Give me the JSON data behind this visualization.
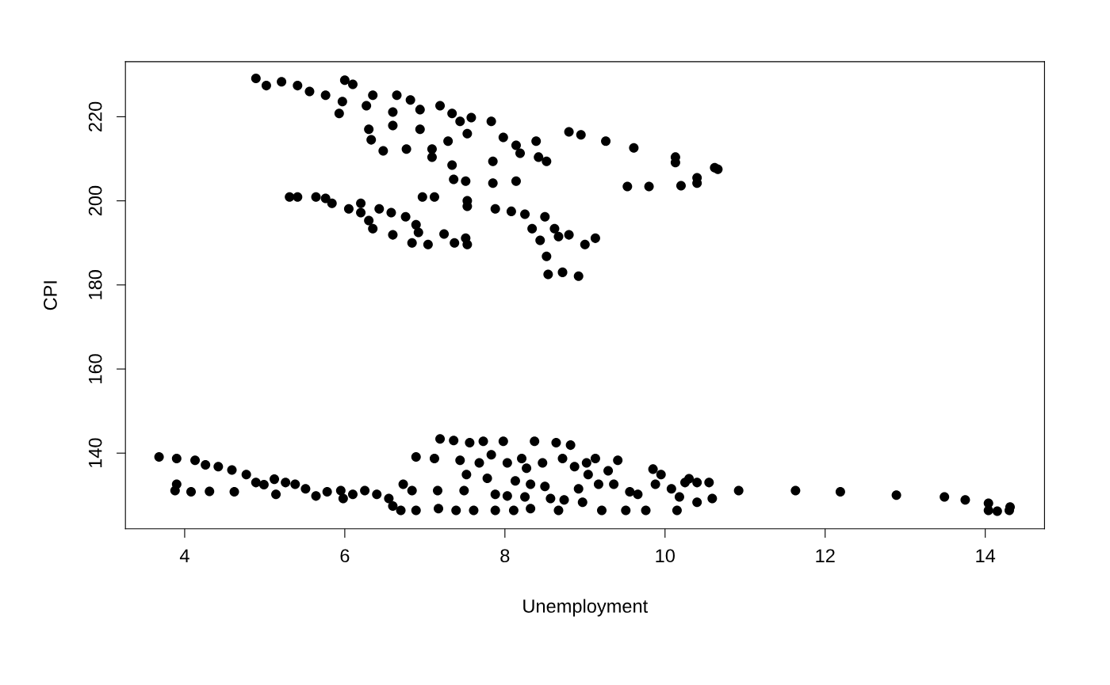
{
  "chart_data": {
    "type": "scatter",
    "xlabel": "Unemployment",
    "ylabel": "CPI",
    "xlim": [
      3.26,
      14.74
    ],
    "ylim": [
      122.0,
      233.1
    ],
    "xticks": [
      4,
      6,
      8,
      10,
      12,
      14
    ],
    "yticks": [
      140,
      160,
      180,
      200,
      220
    ],
    "grid": false,
    "marker": "circle",
    "series": [
      {
        "color": "#000000",
        "x": [
          4.89,
          5.02,
          5.21,
          5.41,
          5.56,
          5.76,
          5.97,
          6.0,
          6.1,
          6.35,
          6.65,
          6.27,
          5.93,
          6.3,
          6.33,
          6.6,
          6.6,
          6.82,
          6.94,
          6.94,
          6.48,
          6.77,
          7.09,
          7.09,
          7.19,
          7.34,
          7.44,
          7.58,
          7.29,
          7.53,
          7.34,
          7.36,
          7.51,
          7.85,
          7.85,
          7.83,
          7.98,
          8.14,
          8.19,
          8.42,
          8.52,
          8.14,
          8.39,
          8.8,
          8.95,
          9.26,
          9.61,
          9.53,
          9.8,
          10.13,
          10.13,
          10.2,
          10.4,
          10.4,
          10.62,
          10.66,
          5.31,
          5.41,
          5.64,
          5.76,
          5.84,
          6.05,
          6.2,
          6.2,
          6.3,
          6.35,
          6.43,
          6.58,
          6.6,
          6.76,
          6.89,
          6.92,
          6.84,
          7.04,
          6.97,
          7.12,
          7.24,
          7.37,
          7.51,
          7.53,
          7.53,
          7.53,
          7.88,
          8.08,
          8.25,
          8.34,
          8.44,
          8.5,
          8.52,
          8.54,
          8.62,
          8.67,
          8.72,
          8.8,
          8.92,
          9.0,
          9.13,
          3.68,
          3.9,
          3.9,
          3.88,
          4.08,
          4.13,
          4.26,
          4.31,
          4.42,
          4.59,
          4.62,
          4.77,
          4.89,
          4.99,
          5.12,
          5.14,
          5.26,
          5.38,
          5.51,
          5.64,
          5.78,
          5.95,
          5.98,
          6.1,
          6.25,
          6.4,
          6.55,
          6.6,
          6.7,
          6.73,
          6.84,
          6.89,
          6.89,
          7.12,
          7.16,
          7.17,
          7.19,
          7.36,
          7.39,
          7.44,
          7.49,
          7.52,
          7.56,
          7.61,
          7.68,
          7.73,
          7.78,
          7.83,
          7.88,
          7.88,
          7.98,
          8.03,
          8.03,
          8.11,
          8.13,
          8.21,
          8.25,
          8.27,
          8.32,
          8.32,
          8.37,
          8.47,
          8.5,
          8.57,
          8.64,
          8.67,
          8.72,
          8.74,
          8.82,
          8.87,
          8.92,
          8.97,
          9.02,
          9.04,
          9.13,
          9.17,
          9.21,
          9.29,
          9.36,
          9.41,
          9.51,
          9.56,
          9.66,
          9.76,
          9.85,
          9.88,
          9.95,
          10.08,
          10.15,
          10.18,
          10.25,
          10.3,
          10.4,
          10.4,
          10.55,
          10.59,
          10.92,
          11.63,
          12.19,
          12.89,
          13.49,
          13.75,
          14.04,
          14.04,
          14.15,
          14.3,
          14.31
        ],
        "values": [
          229.1,
          227.4,
          228.3,
          227.4,
          226.0,
          225.1,
          223.6,
          228.7,
          227.7,
          225.1,
          225.1,
          222.6,
          220.8,
          217.0,
          214.5,
          217.9,
          221.1,
          224.0,
          221.7,
          217.0,
          211.9,
          212.3,
          212.3,
          210.4,
          222.6,
          220.8,
          218.9,
          219.8,
          214.2,
          216.0,
          208.5,
          205.1,
          204.7,
          209.4,
          204.2,
          218.9,
          215.1,
          213.2,
          211.3,
          210.4,
          209.4,
          204.7,
          214.2,
          216.4,
          215.7,
          214.2,
          212.6,
          203.4,
          203.4,
          210.4,
          209.1,
          203.6,
          205.5,
          204.2,
          207.9,
          207.5,
          200.9,
          200.9,
          200.9,
          200.6,
          199.4,
          198.1,
          199.4,
          197.2,
          195.3,
          193.4,
          198.1,
          197.2,
          191.9,
          196.2,
          194.3,
          192.5,
          190.0,
          189.6,
          200.9,
          200.9,
          192.1,
          190.0,
          191.1,
          189.6,
          200.0,
          198.7,
          198.1,
          197.5,
          196.8,
          193.4,
          190.6,
          196.2,
          186.8,
          182.5,
          193.4,
          191.5,
          183.0,
          191.9,
          182.1,
          189.6,
          191.1,
          139.1,
          138.7,
          132.6,
          131.1,
          130.8,
          138.3,
          137.2,
          130.9,
          136.8,
          136.0,
          130.8,
          134.9,
          133.0,
          132.5,
          133.8,
          130.2,
          133.0,
          132.6,
          131.5,
          129.8,
          130.8,
          131.1,
          129.2,
          130.2,
          131.1,
          130.2,
          129.2,
          127.4,
          126.4,
          132.6,
          131.1,
          139.1,
          126.4,
          138.7,
          131.1,
          126.8,
          143.4,
          143.0,
          126.4,
          138.3,
          131.1,
          134.9,
          142.5,
          126.4,
          137.7,
          142.8,
          134.0,
          139.6,
          130.2,
          126.4,
          142.8,
          137.7,
          129.8,
          126.4,
          133.4,
          138.7,
          129.6,
          136.4,
          132.6,
          126.8,
          142.8,
          137.7,
          132.1,
          129.2,
          142.5,
          126.4,
          138.7,
          128.9,
          141.9,
          136.8,
          131.5,
          128.3,
          137.7,
          134.9,
          138.7,
          132.6,
          126.4,
          135.8,
          132.6,
          138.3,
          126.4,
          130.8,
          130.2,
          126.4,
          136.2,
          132.6,
          134.9,
          131.5,
          126.4,
          129.6,
          133.0,
          133.9,
          128.3,
          133.0,
          133.0,
          129.2,
          131.1,
          131.1,
          130.8,
          130.0,
          129.6,
          128.9,
          128.1,
          126.4,
          126.2,
          126.4,
          127.2
        ]
      }
    ]
  }
}
